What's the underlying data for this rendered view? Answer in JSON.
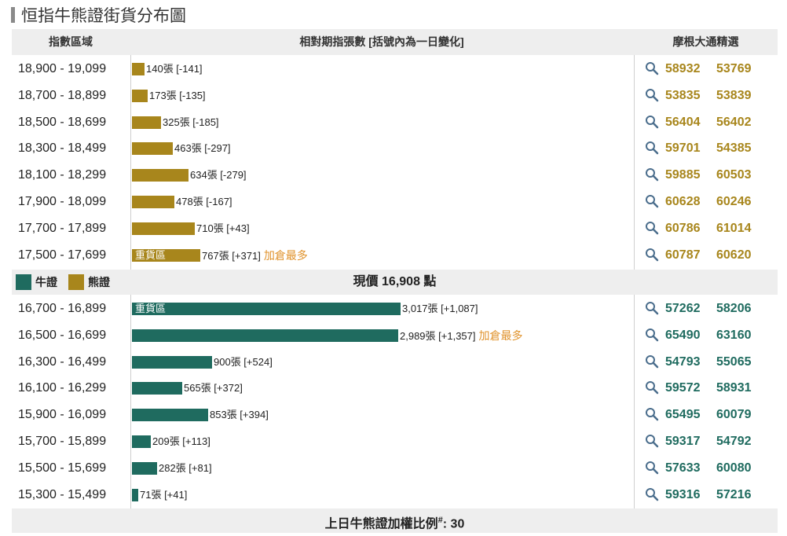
{
  "page": {
    "title": "恒指牛熊證街貨分布圖",
    "header": {
      "col_range": "指數區域",
      "col_bars": "相對期指張數 [括號內為一日變化]",
      "col_picks": "摩根大通精選"
    },
    "legend": {
      "bull_label": "牛證",
      "bear_label": "熊證"
    },
    "current_price": "現價 16,908 點",
    "footer_label": "上日牛熊證加權比例",
    "footer_mark": "#",
    "footer_value": ": 30",
    "colors": {
      "bear": "#a8861c",
      "bull": "#1f6b5f",
      "highlight": "#e0922b",
      "header_bg": "#eeeeee"
    }
  },
  "chart_data": {
    "type": "bar",
    "orientation": "horizontal",
    "title": "恒指牛熊證街貨分布圖",
    "bear": [
      {
        "range": "18,900 - 19,099",
        "value": 140,
        "label": "140張 [-141]",
        "codes": [
          "58932",
          "53769"
        ]
      },
      {
        "range": "18,700 - 18,899",
        "value": 173,
        "label": "173張 [-135]",
        "codes": [
          "53835",
          "53839"
        ]
      },
      {
        "range": "18,500 - 18,699",
        "value": 325,
        "label": "325張 [-185]",
        "codes": [
          "56404",
          "56402"
        ]
      },
      {
        "range": "18,300 - 18,499",
        "value": 463,
        "label": "463張 [-297]",
        "codes": [
          "59701",
          "54385"
        ]
      },
      {
        "range": "18,100 - 18,299",
        "value": 634,
        "label": "634張 [-279]",
        "codes": [
          "59885",
          "60503"
        ]
      },
      {
        "range": "17,900 - 18,099",
        "value": 478,
        "label": "478張 [-167]",
        "codes": [
          "60628",
          "60246"
        ]
      },
      {
        "range": "17,700 - 17,899",
        "value": 710,
        "label": "710張 [+43]",
        "codes": [
          "60786",
          "61014"
        ]
      },
      {
        "range": "17,500 - 17,699",
        "value": 767,
        "label": "767張 [+371]",
        "bar_label": "重貨區",
        "note": "加倉最多",
        "codes": [
          "60787",
          "60620"
        ]
      }
    ],
    "bull": [
      {
        "range": "16,700 - 16,899",
        "value": 3017,
        "label": "3,017張 [+1,087]",
        "bar_label": "重貨區",
        "codes": [
          "57262",
          "58206"
        ]
      },
      {
        "range": "16,500 - 16,699",
        "value": 2989,
        "label": "2,989張 [+1,357]",
        "note": "加倉最多",
        "codes": [
          "65490",
          "63160"
        ]
      },
      {
        "range": "16,300 - 16,499",
        "value": 900,
        "label": "900張 [+524]",
        "codes": [
          "54793",
          "55065"
        ]
      },
      {
        "range": "16,100 - 16,299",
        "value": 565,
        "label": "565張 [+372]",
        "codes": [
          "59572",
          "58931"
        ]
      },
      {
        "range": "15,900 - 16,099",
        "value": 853,
        "label": "853張 [+394]",
        "codes": [
          "65495",
          "60079"
        ]
      },
      {
        "range": "15,700 - 15,899",
        "value": 209,
        "label": "209張 [+113]",
        "codes": [
          "59317",
          "54792"
        ]
      },
      {
        "range": "15,500 - 15,699",
        "value": 282,
        "label": "282張 [+81]",
        "codes": [
          "57633",
          "60080"
        ]
      },
      {
        "range": "15,300 - 15,499",
        "value": 71,
        "label": "71張 [+41]",
        "codes": [
          "59316",
          "57216"
        ]
      }
    ]
  }
}
